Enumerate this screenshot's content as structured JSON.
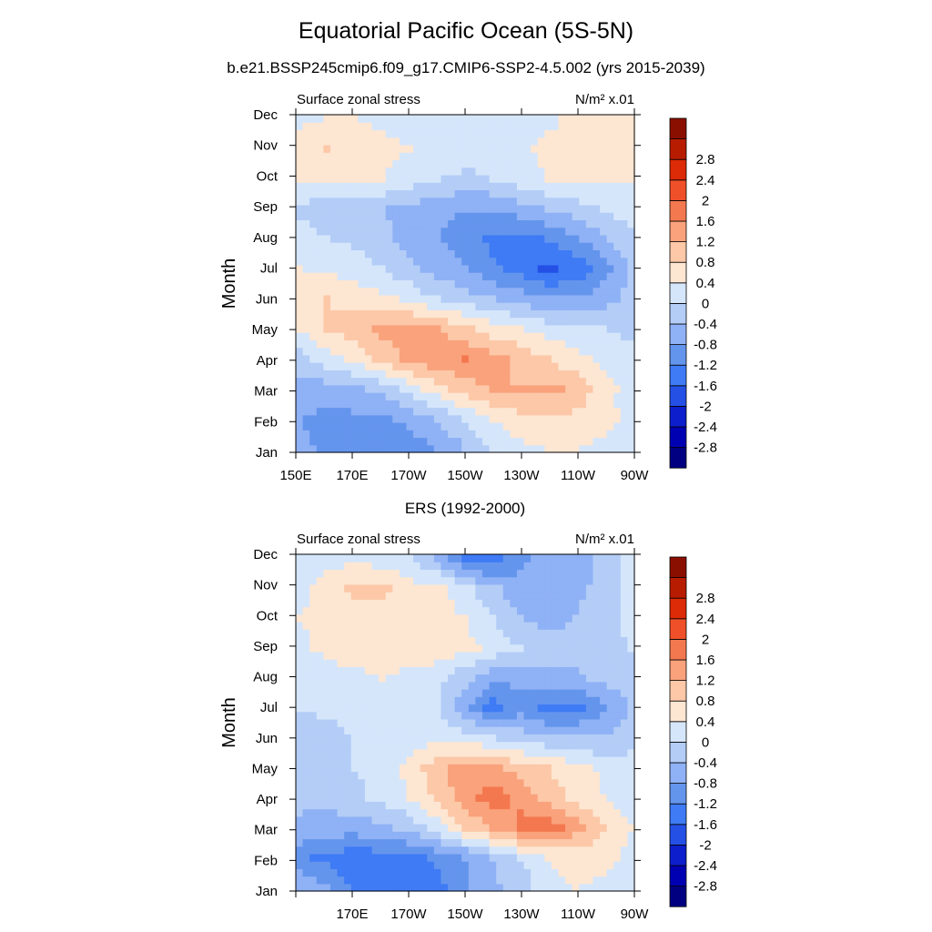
{
  "title": "Equatorial Pacific Ocean (5S-5N)",
  "subtitle": "b.e21.BSSP245cmip6.f09_g17.CMIP6-SSP2-4.5.002 (yrs 2015-2039)",
  "colors": [
    "#000080",
    "#0000b3",
    "#0d1ecc",
    "#2450e6",
    "#3e7bf5",
    "#6495ed",
    "#8fb1f5",
    "#b3cdf7",
    "#d5e6fb",
    "#fde6d2",
    "#fcc8a8",
    "#f9a27c",
    "#f4784f",
    "#ef502a",
    "#dd2a07",
    "#b81c00",
    "#8b0f00"
  ],
  "colorbar_labels": [
    "-2.8",
    "-2.4",
    "-2",
    "-1.6",
    "-1.2",
    "-0.8",
    "-0.4",
    "0",
    "0.4",
    "0.8",
    "1.2",
    "1.6",
    "2",
    "2.4",
    "2.8"
  ],
  "chart_data": [
    {
      "type": "heatmap",
      "title": "",
      "panel_left_label": "Surface zonal stress",
      "panel_right_label": "N/m² x.01",
      "ylabel": "Month",
      "y_categories": [
        "Jan",
        "Feb",
        "Mar",
        "Apr",
        "May",
        "Jun",
        "Jul",
        "Aug",
        "Sep",
        "Oct",
        "Nov",
        "Dec"
      ],
      "x_tick_labels": [
        "150E",
        "170E",
        "170W",
        "150W",
        "130W",
        "110W",
        "90W"
      ],
      "x_columns": [
        "150E",
        "160E",
        "170E",
        "180",
        "170W",
        "160W",
        "150W",
        "140W",
        "130W",
        "120W",
        "110W",
        "100W",
        "90W"
      ],
      "levels": [
        -2.8,
        -2.4,
        -2,
        -1.6,
        -1.2,
        -0.8,
        -0.4,
        0,
        0.4,
        0.8,
        1.2,
        1.6,
        2,
        2.4,
        2.8
      ],
      "values": [
        [
          -0.7,
          -0.9,
          -1.0,
          -1.2,
          -1.0,
          -0.8,
          -0.4,
          0.0,
          0.3,
          0.4,
          0.4,
          0.3,
          0.2
        ],
        [
          -0.8,
          -0.9,
          -0.9,
          -0.9,
          -0.7,
          -0.4,
          0.0,
          0.4,
          0.7,
          0.7,
          0.7,
          0.5,
          0.3
        ],
        [
          -0.6,
          -0.6,
          -0.5,
          -0.3,
          0.2,
          0.6,
          1.0,
          1.2,
          1.2,
          1.3,
          1.1,
          0.6,
          0.2
        ],
        [
          -0.2,
          0.2,
          0.5,
          0.9,
          1.3,
          1.5,
          1.6,
          1.4,
          1.1,
          0.8,
          0.5,
          0.3,
          0.1
        ],
        [
          0.4,
          0.8,
          1.0,
          1.3,
          1.4,
          1.2,
          0.9,
          0.6,
          0.4,
          0.2,
          0.1,
          0.0,
          -0.1
        ],
        [
          0.6,
          0.8,
          0.7,
          0.5,
          0.3,
          0.0,
          -0.2,
          -0.4,
          -0.6,
          -0.8,
          -0.8,
          -0.6,
          -0.3
        ],
        [
          0.4,
          0.3,
          0.2,
          0.0,
          -0.3,
          -0.6,
          -0.8,
          -1.1,
          -1.4,
          -1.7,
          -1.5,
          -1.0,
          -0.3
        ],
        [
          0.2,
          0.0,
          -0.1,
          -0.3,
          -0.6,
          -0.8,
          -1.0,
          -1.3,
          -1.4,
          -1.2,
          -0.9,
          -0.5,
          -0.1
        ],
        [
          -0.1,
          -0.2,
          -0.3,
          -0.4,
          -0.5,
          -0.7,
          -0.8,
          -0.8,
          -0.6,
          -0.4,
          -0.2,
          0.0,
          0.2
        ],
        [
          0.5,
          0.4,
          0.6,
          0.4,
          0.2,
          0.0,
          -0.1,
          0.0,
          0.2,
          0.4,
          0.5,
          0.5,
          0.4
        ],
        [
          0.7,
          0.8,
          0.6,
          0.5,
          0.4,
          0.3,
          0.2,
          0.2,
          0.3,
          0.5,
          0.6,
          0.6,
          0.5
        ],
        [
          0.3,
          0.4,
          0.4,
          0.3,
          0.2,
          0.1,
          0.1,
          0.1,
          0.2,
          0.3,
          0.5,
          0.5,
          0.4
        ]
      ]
    },
    {
      "type": "heatmap",
      "title": "ERS (1992-2000)",
      "panel_left_label": "Surface zonal stress",
      "panel_right_label": "N/m² x.01",
      "ylabel": "Month",
      "y_categories": [
        "Jan",
        "Feb",
        "Mar",
        "Apr",
        "May",
        "Jun",
        "Jul",
        "Aug",
        "Sep",
        "Oct",
        "Nov",
        "Dec"
      ],
      "x_tick_labels": [
        "170E",
        "170W",
        "150W",
        "130W",
        "110W",
        "90W"
      ],
      "x_columns": [
        "150E",
        "160E",
        "170E",
        "180",
        "170W",
        "160W",
        "150W",
        "140W",
        "130W",
        "120W",
        "110W",
        "100W",
        "90W"
      ],
      "levels": [
        -2.8,
        -2.4,
        -2,
        -1.6,
        -1.2,
        -0.8,
        -0.4,
        0,
        0.4,
        0.8,
        1.2,
        1.6,
        2,
        2.4,
        2.8
      ],
      "values": [
        [
          -0.5,
          -0.8,
          -1.3,
          -1.4,
          -1.6,
          -1.3,
          -0.9,
          -0.5,
          -0.2,
          0.2,
          0.4,
          0.3,
          0.2
        ],
        [
          -1.1,
          -1.3,
          -1.5,
          -1.4,
          -1.3,
          -1.1,
          -0.8,
          -0.4,
          0.0,
          0.4,
          0.6,
          0.5,
          0.3
        ],
        [
          -0.5,
          -0.6,
          -0.6,
          -0.5,
          -0.3,
          0.2,
          0.8,
          1.3,
          1.7,
          1.8,
          1.4,
          0.8,
          0.4
        ],
        [
          -0.3,
          -0.3,
          -0.1,
          0.1,
          0.4,
          0.9,
          1.4,
          1.8,
          1.5,
          1.0,
          0.7,
          0.4,
          0.2
        ],
        [
          -0.2,
          -0.2,
          0.0,
          0.2,
          0.5,
          1.1,
          1.4,
          1.3,
          1.0,
          0.8,
          0.6,
          0.3,
          0.2
        ],
        [
          -0.3,
          -0.2,
          0.0,
          0.1,
          0.2,
          0.3,
          0.2,
          0.0,
          -0.2,
          -0.3,
          -0.4,
          -0.4,
          -0.2
        ],
        [
          0.0,
          0.1,
          0.2,
          0.3,
          0.2,
          0.0,
          -0.7,
          -1.4,
          -1.0,
          -1.4,
          -1.3,
          -0.9,
          -0.4
        ],
        [
          0.1,
          0.2,
          0.3,
          0.4,
          0.3,
          0.1,
          -0.3,
          -0.7,
          -0.7,
          -0.6,
          -0.5,
          -0.3,
          -0.1
        ],
        [
          0.3,
          0.5,
          0.6,
          0.6,
          0.6,
          0.7,
          0.5,
          0.3,
          0.0,
          -0.2,
          -0.2,
          -0.1,
          0.0
        ],
        [
          0.4,
          0.5,
          0.6,
          0.6,
          0.5,
          0.6,
          0.4,
          0.0,
          -0.4,
          -0.6,
          -0.4,
          -0.2,
          0.1
        ],
        [
          0.3,
          0.5,
          0.9,
          0.9,
          0.6,
          0.5,
          0.1,
          -0.3,
          -0.7,
          -0.7,
          -0.5,
          -0.3,
          0.2
        ],
        [
          0.2,
          0.3,
          0.3,
          0.2,
          0.0,
          -0.5,
          -1.3,
          -1.5,
          -0.9,
          -0.6,
          -0.6,
          -0.3,
          0.2
        ]
      ]
    }
  ]
}
